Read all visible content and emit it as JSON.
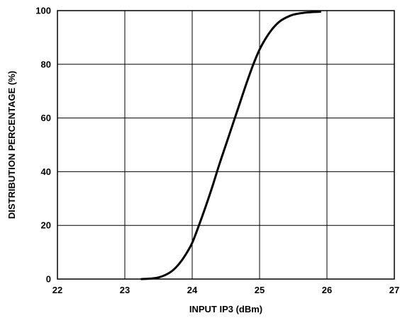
{
  "chart_data": {
    "type": "line",
    "title": "",
    "xlabel": "INPUT IP3 (dBm)",
    "ylabel": "DISTRIBUTION PERCENTAGE (%)",
    "xlim": [
      22,
      27
    ],
    "ylim": [
      0,
      100
    ],
    "x_ticks": [
      "22",
      "23",
      "24",
      "25",
      "26",
      "27"
    ],
    "y_ticks": [
      "0",
      "20",
      "40",
      "60",
      "80",
      "100"
    ],
    "grid": true,
    "series": [
      {
        "color": "#000000",
        "x": [
          23.25,
          23.4,
          23.5,
          23.6,
          23.7,
          23.8,
          23.9,
          24.0,
          24.1,
          24.2,
          24.3,
          24.4,
          24.5,
          24.6,
          24.7,
          24.8,
          24.9,
          25.0,
          25.1,
          25.2,
          25.3,
          25.4,
          25.5,
          25.6,
          25.7,
          25.8,
          25.9
        ],
        "y": [
          0,
          0.2,
          0.6,
          1.5,
          3,
          5.5,
          9,
          13.5,
          20,
          27,
          34.5,
          42.5,
          50,
          57.5,
          65,
          72.5,
          79.5,
          85.5,
          90,
          93.5,
          96,
          97.5,
          98.5,
          99,
          99.3,
          99.5,
          99.6
        ]
      }
    ]
  }
}
